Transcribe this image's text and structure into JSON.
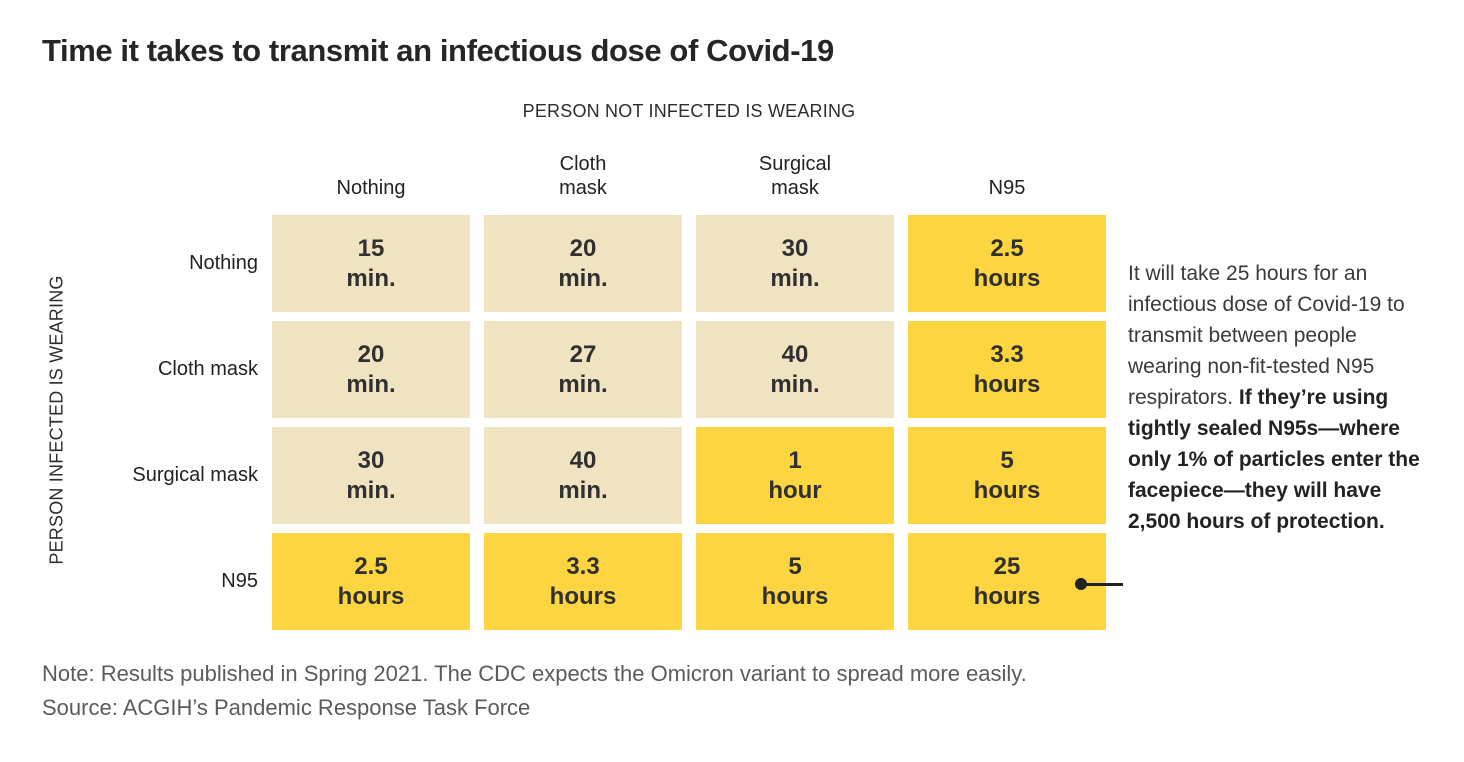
{
  "title": "Time it takes to transmit an infectious dose of Covid-19",
  "chart_data": {
    "type": "heatmap",
    "title": "Time it takes to transmit an infectious dose of Covid-19",
    "col_axis_label": "PERSON NOT INFECTED IS WEARING",
    "row_axis_label": "PERSON INFECTED IS WEARING",
    "columns": [
      "Nothing",
      "Cloth\nmask",
      "Surgical\nmask",
      "N95"
    ],
    "rows": [
      "Nothing",
      "Cloth mask",
      "Surgical mask",
      "N95"
    ],
    "colors": {
      "short_time_fill": "#efe3c1",
      "long_time_fill": "#fdd540",
      "cell_text": "#303030"
    },
    "cells": [
      [
        {
          "value": "15",
          "unit": "min.",
          "minutes": 15,
          "highlight": false
        },
        {
          "value": "20",
          "unit": "min.",
          "minutes": 20,
          "highlight": false
        },
        {
          "value": "30",
          "unit": "min.",
          "minutes": 30,
          "highlight": false
        },
        {
          "value": "2.5",
          "unit": "hours",
          "minutes": 150,
          "highlight": true
        }
      ],
      [
        {
          "value": "20",
          "unit": "min.",
          "minutes": 20,
          "highlight": false
        },
        {
          "value": "27",
          "unit": "min.",
          "minutes": 27,
          "highlight": false
        },
        {
          "value": "40",
          "unit": "min.",
          "minutes": 40,
          "highlight": false
        },
        {
          "value": "3.3",
          "unit": "hours",
          "minutes": 198,
          "highlight": true
        }
      ],
      [
        {
          "value": "30",
          "unit": "min.",
          "minutes": 30,
          "highlight": false
        },
        {
          "value": "40",
          "unit": "min.",
          "minutes": 40,
          "highlight": false
        },
        {
          "value": "1",
          "unit": "hour",
          "minutes": 60,
          "highlight": true
        },
        {
          "value": "5",
          "unit": "hours",
          "minutes": 300,
          "highlight": true
        }
      ],
      [
        {
          "value": "2.5",
          "unit": "hours",
          "minutes": 150,
          "highlight": true
        },
        {
          "value": "3.3",
          "unit": "hours",
          "minutes": 198,
          "highlight": true
        },
        {
          "value": "5",
          "unit": "hours",
          "minutes": 300,
          "highlight": true
        },
        {
          "value": "25",
          "unit": "hours",
          "minutes": 1500,
          "highlight": true
        }
      ]
    ]
  },
  "annotation": {
    "normal": "It will take 25 hours for an infectious dose of Covid-19 to transmit between people wearing non-fit-tested N95 respirators. ",
    "bold": "If they’re using tightly sealed N95s—where only 1% of particles enter the facepiece—they will have 2,500 hours of protection."
  },
  "note": "Note: Results published in Spring 2021. The CDC expects the Omicron variant to spread more easily.",
  "source": "Source: ACGIH’s Pandemic Response Task Force"
}
